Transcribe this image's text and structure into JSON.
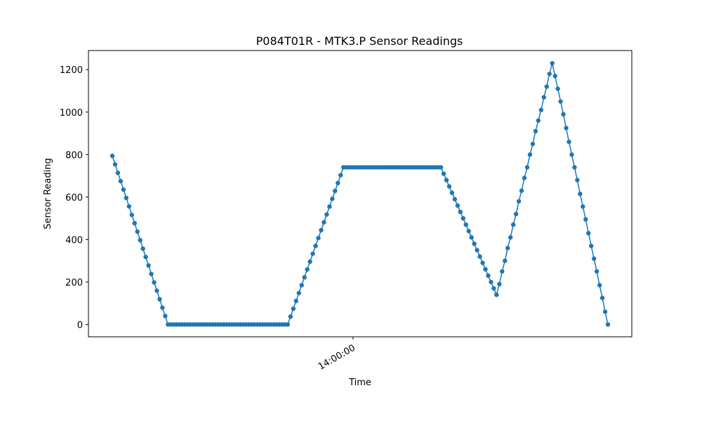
{
  "chart_data": {
    "type": "line",
    "title": "P084T01R - MTK3.P Sensor Readings",
    "xlabel": "Time",
    "ylabel": "Sensor Reading",
    "x_ticks": [
      {
        "label": "14:00:00",
        "frac": 0.487
      }
    ],
    "y_ticks": [
      0,
      200,
      400,
      600,
      800,
      1000,
      1200
    ],
    "ylim": [
      -58,
      1290
    ],
    "marker": "o",
    "grid": false,
    "legend": "none",
    "color": "#1f77b4",
    "series": [
      {
        "values": [
          794,
          754,
          714,
          675,
          635,
          596,
          556,
          516,
          477,
          437,
          397,
          357,
          318,
          278,
          238,
          198,
          159,
          119,
          79,
          40,
          0,
          0,
          0,
          0,
          0,
          0,
          0,
          0,
          0,
          0,
          0,
          0,
          0,
          0,
          0,
          0,
          0,
          0,
          0,
          0,
          0,
          0,
          0,
          0,
          0,
          0,
          0,
          0,
          0,
          0,
          0,
          0,
          0,
          0,
          0,
          0,
          0,
          0,
          0,
          0,
          0,
          0,
          0,
          0,
          37,
          74,
          111,
          148,
          185,
          222,
          259,
          296,
          333,
          370,
          407,
          444,
          481,
          518,
          555,
          592,
          629,
          666,
          703,
          740,
          740,
          740,
          740,
          740,
          740,
          740,
          740,
          740,
          740,
          740,
          740,
          740,
          740,
          740,
          740,
          740,
          740,
          740,
          740,
          740,
          740,
          740,
          740,
          740,
          740,
          740,
          740,
          740,
          740,
          740,
          740,
          740,
          740,
          740,
          740,
          710,
          680,
          650,
          620,
          590,
          560,
          530,
          500,
          470,
          440,
          410,
          380,
          350,
          320,
          290,
          260,
          230,
          200,
          170,
          140,
          190,
          250,
          300,
          360,
          410,
          470,
          520,
          580,
          630,
          690,
          740,
          800,
          850,
          910,
          960,
          1010,
          1070,
          1120,
          1180,
          1230,
          1170,
          1110,
          1050,
          990,
          925,
          860,
          800,
          740,
          680,
          615,
          555,
          495,
          430,
          370,
          310,
          250,
          185,
          125,
          60,
          0
        ]
      }
    ]
  }
}
